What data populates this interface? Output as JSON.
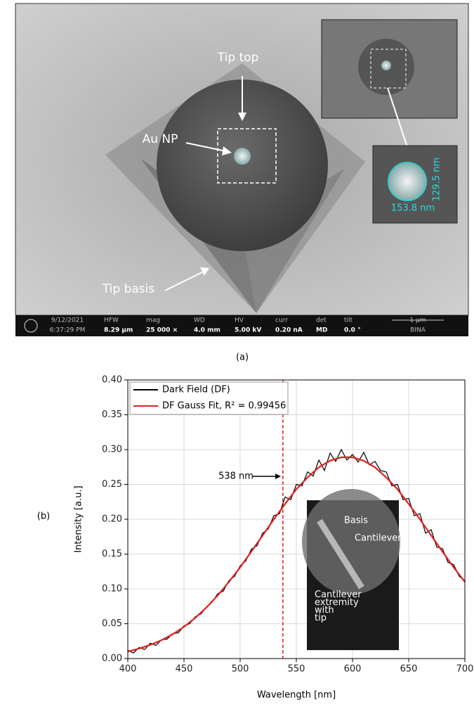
{
  "panel_a": {
    "caption": "(a)",
    "labels": [
      "Tip top",
      "Au NP",
      "Tip basis"
    ],
    "inset_dims": [
      "129.5 nm",
      "153.8 nm"
    ],
    "info_bar": {
      "date": "9/12/2021",
      "time": "6:37:29 PM",
      "fields": [
        {
          "name": "HFW",
          "value": "8.29 µm"
        },
        {
          "name": "mag",
          "value": "25 000 ×"
        },
        {
          "name": "WD",
          "value": "4.0 mm"
        },
        {
          "name": "HV",
          "value": "5.00 kV"
        },
        {
          "name": "curr",
          "value": "0.20 nA"
        },
        {
          "name": "det",
          "value": "MD"
        },
        {
          "name": "tilt",
          "value": "0.0 °"
        }
      ],
      "scale": "1 µm",
      "org": "BINA"
    }
  },
  "panel_b": {
    "caption": "(b)",
    "inset_labels": [
      "Basis",
      "Cantilever",
      "Cantilever extremity with tip"
    ]
  },
  "chart_data": {
    "type": "line",
    "x_label": "Wavelength [nm]",
    "y_label": "Intensity [a.u.]",
    "xlim": [
      400,
      700
    ],
    "ylim": [
      0,
      0.4
    ],
    "xticks": [
      400,
      450,
      500,
      550,
      600,
      650,
      700
    ],
    "yticks": [
      {
        "value": 0,
        "label": "0.00"
      },
      0.05,
      {
        "value": 0.1,
        "label": "0.10"
      },
      0.15,
      {
        "value": 0.2,
        "label": "0.20"
      },
      0.25,
      {
        "value": 0.3,
        "label": "0.30"
      },
      0.35,
      {
        "value": 0.4,
        "label": "0.40"
      }
    ],
    "grid": true,
    "legend": "top-left",
    "vline": {
      "x": 538,
      "color": "#e02020",
      "label": "538 nm"
    },
    "series": [
      {
        "name": "Dark Field (DF)",
        "color": "#000000",
        "x": [
          400,
          405,
          410,
          415,
          420,
          425,
          430,
          435,
          440,
          445,
          450,
          455,
          460,
          465,
          470,
          475,
          480,
          485,
          490,
          495,
          500,
          505,
          510,
          515,
          520,
          525,
          530,
          535,
          540,
          545,
          550,
          555,
          560,
          565,
          570,
          575,
          580,
          585,
          590,
          595,
          600,
          605,
          610,
          615,
          620,
          625,
          630,
          635,
          640,
          645,
          650,
          655,
          660,
          665,
          670,
          675,
          680,
          685,
          690,
          695,
          700
        ],
        "values": [
          0.012,
          0.008,
          0.016,
          0.013,
          0.022,
          0.019,
          0.027,
          0.028,
          0.036,
          0.037,
          0.047,
          0.05,
          0.06,
          0.064,
          0.074,
          0.081,
          0.093,
          0.097,
          0.112,
          0.118,
          0.133,
          0.14,
          0.157,
          0.162,
          0.18,
          0.186,
          0.205,
          0.208,
          0.232,
          0.228,
          0.25,
          0.248,
          0.268,
          0.262,
          0.285,
          0.27,
          0.295,
          0.283,
          0.3,
          0.285,
          0.293,
          0.282,
          0.296,
          0.278,
          0.283,
          0.27,
          0.268,
          0.248,
          0.25,
          0.228,
          0.23,
          0.205,
          0.208,
          0.18,
          0.185,
          0.16,
          0.158,
          0.138,
          0.135,
          0.118,
          0.112
        ]
      },
      {
        "name": "DF Gauss Fit, R² = 0.99456",
        "color": "#e02020",
        "x": [
          400,
          410,
          420,
          430,
          440,
          450,
          460,
          470,
          480,
          490,
          500,
          510,
          520,
          530,
          540,
          550,
          560,
          570,
          580,
          590,
          600,
          610,
          620,
          630,
          640,
          650,
          660,
          670,
          680,
          690,
          700
        ],
        "values": [
          0.01,
          0.0143,
          0.0196,
          0.0264,
          0.035,
          0.0456,
          0.0584,
          0.0733,
          0.0906,
          0.11,
          0.131,
          0.1536,
          0.1768,
          0.2,
          0.222,
          0.243,
          0.26,
          0.2745,
          0.284,
          0.289,
          0.289,
          0.284,
          0.2745,
          0.26,
          0.243,
          0.222,
          0.2,
          0.1768,
          0.1536,
          0.131,
          0.11
        ]
      }
    ]
  }
}
